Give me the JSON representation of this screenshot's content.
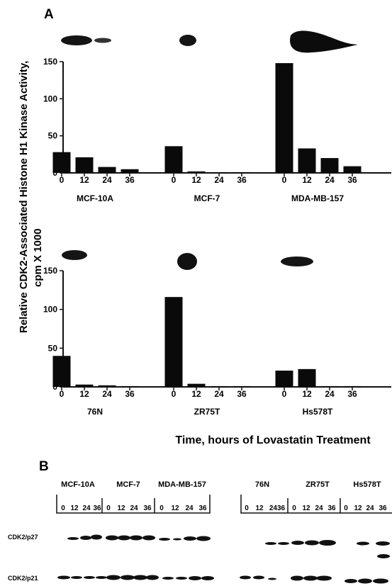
{
  "panel_a": {
    "letter": "A"
  },
  "panel_b": {
    "letter": "B"
  },
  "y_axis_label_line1": "Relative CDK2-Associated Histone H1 Kinase Activity,",
  "y_axis_label_line2": "cpm X 1000",
  "x_axis_title": "Time, hours of Lovastatin Treatment",
  "chart_data": [
    {
      "type": "bar",
      "ylim": [
        0,
        150
      ],
      "yticks": [
        0,
        50,
        100,
        150
      ],
      "timepoints": [
        "0",
        "12",
        "24",
        "36"
      ],
      "groups": [
        {
          "name": "MCF-10A",
          "values": [
            28,
            21,
            8,
            5
          ]
        },
        {
          "name": "MCF-7",
          "values": [
            36,
            2,
            1,
            1
          ]
        },
        {
          "name": "MDA-MB-157",
          "values": [
            148,
            33,
            20,
            9
          ]
        }
      ]
    },
    {
      "type": "bar",
      "ylim": [
        0,
        150
      ],
      "yticks": [
        0,
        50,
        100,
        150
      ],
      "timepoints": [
        "0",
        "12",
        "24",
        "36"
      ],
      "groups": [
        {
          "name": "76N",
          "values": [
            40,
            3,
            2,
            1
          ]
        },
        {
          "name": "ZR75T",
          "values": [
            116,
            4,
            1,
            1
          ]
        },
        {
          "name": "Hs578T",
          "values": [
            21,
            23,
            1,
            1
          ]
        }
      ]
    }
  ],
  "blot": {
    "left_groups": [
      "MCF-10A",
      "MCF-7",
      "MDA-MB-157"
    ],
    "right_groups": [
      "76N",
      "ZR75T",
      "Hs578T"
    ],
    "lanes_plain": [
      "0",
      "12",
      "24",
      "36"
    ],
    "lanes_compact": [
      "0",
      "12",
      "2436"
    ],
    "rows": [
      "CDK2/p27",
      "CDK2/p21"
    ]
  }
}
